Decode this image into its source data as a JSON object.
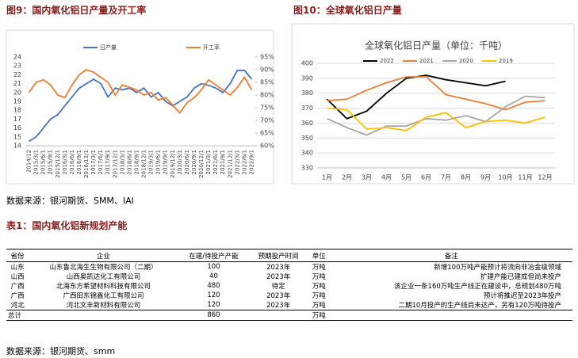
{
  "chart_data": [
    {
      "type": "line",
      "legend": "top",
      "categories": [
        "2014/12",
        "2015/3/1",
        "2015/6/1",
        "2015/9/1",
        "2015/12/1",
        "2016/3/1",
        "2016/6/1",
        "2016/9/1",
        "2016/12/1",
        "2017/3/1",
        "2017/6/1",
        "2017/9/1",
        "2017/12/1",
        "2018/3/1",
        "2018/6/1",
        "2018/9/1",
        "2018/12/1",
        "2019/3/1",
        "2019/6/1",
        "2019/9/1",
        "2019/12/1",
        "2020/3/1",
        "2020/6/1",
        "2020/9/1",
        "2020/12/1",
        "2021/3/1",
        "2021/6/1",
        "2021/9/1",
        "2021/12/1",
        "2022/3/1",
        "2022/6/1",
        "2022/9/1"
      ],
      "series": [
        {
          "name": "日产量",
          "color": "#4472c4",
          "values": [
            14.5,
            15,
            16,
            17,
            17.5,
            18.5,
            19.5,
            20.5,
            21,
            21.5,
            21,
            19.5,
            20.5,
            20.3,
            20.5,
            20,
            20.5,
            19.5,
            20,
            19,
            18.5,
            19,
            19.5,
            20.5,
            21,
            20.8,
            20.5,
            20,
            21,
            22.5,
            22.5,
            21.5
          ]
        },
        {
          "name": "开工率",
          "color": "#ed7d31",
          "axis": "y2",
          "values": [
            81,
            85,
            86,
            84,
            80,
            79,
            84,
            88,
            90,
            89,
            87,
            85,
            80,
            84,
            83,
            82,
            80,
            81,
            78,
            79,
            76,
            73,
            77,
            79,
            82,
            86,
            84,
            82,
            80,
            83,
            87,
            82
          ]
        }
      ],
      "ylim": [
        14,
        24
      ],
      "yticks": [
        14,
        15,
        16,
        17,
        18,
        19,
        20,
        21,
        22,
        23,
        24
      ],
      "y2lim": [
        60,
        95
      ],
      "y2ticks": [
        {
          "value": 60,
          "label": "60%"
        },
        {
          "value": 65,
          "label": "65%"
        },
        {
          "value": 70,
          "label": "70%"
        },
        {
          "value": 75,
          "label": "75%"
        },
        {
          "value": 80,
          "label": "80%"
        },
        {
          "value": 85,
          "label": "85%"
        },
        {
          "value": 90,
          "label": "90%"
        },
        {
          "value": 95,
          "label": "95%"
        }
      ],
      "grid": false
    },
    {
      "type": "line",
      "title": "全球氧化铝日产量（单位：千吨）",
      "legend": "top",
      "categories": [
        "1月",
        "2月",
        "3月",
        "4月",
        "5月",
        "6月",
        "7月",
        "8月",
        "9月",
        "10月",
        "11月",
        "12月"
      ],
      "series": [
        {
          "name": "2022",
          "color": "#000000",
          "values": [
            376,
            363,
            368,
            380,
            390,
            392,
            389,
            387,
            385,
            388,
            null,
            null
          ]
        },
        {
          "name": "2021",
          "color": "#ed7d31",
          "values": [
            375,
            376,
            382,
            387,
            391,
            391,
            379,
            376,
            373,
            369,
            374,
            375
          ]
        },
        {
          "name": "2020",
          "color": "#a5a5a5",
          "values": [
            363,
            357,
            352,
            358,
            358,
            363,
            362,
            365,
            361,
            371,
            378,
            377
          ]
        },
        {
          "name": "2019",
          "color": "#ffc000",
          "values": [
            370,
            369,
            356,
            357,
            355,
            364,
            367,
            357,
            361,
            362,
            360,
            364
          ]
        }
      ],
      "ylim": [
        330,
        400
      ],
      "yticks": [
        330,
        340,
        350,
        360,
        370,
        380,
        390,
        400
      ],
      "grid": true
    }
  ],
  "document": {
    "figure_captions": [
      "图9：国内氧化铝日产量及开工率",
      "图10：全球氧化铝日产量"
    ],
    "source_1": "数据来源：银河期货、SMM、IAI",
    "table_title": "表1：国内氧化铝新规划产能",
    "table": {
      "header": [
        "省份",
        "企业",
        "在建/待投产产能",
        "预期投产时间",
        "单位",
        "备注"
      ],
      "rows": [
        [
          "山东",
          "山东鲁北海生生物有限公司（二期）",
          100,
          "2023年",
          "万吨",
          "新增100万吨产能预计将流向非冶金级领域"
        ],
        [
          "山西",
          "山西奥凯达化工有限公司",
          40,
          "2023年",
          "万吨",
          "扩建产能已建成但尚未投产"
        ],
        [
          "广西",
          "北海东方希望材料科技有限公司",
          480,
          "待定",
          "万吨",
          "该企业一条160万吨生产线正在建设中，总规划480万吨"
        ],
        [
          "广西",
          "广西田东锦鑫化工有限公司",
          120,
          "2023年",
          "万吨",
          "预计将推迟至2023年投产"
        ],
        [
          "河北",
          "河北文丰新材料有限公司",
          120,
          "2023年",
          "万吨",
          "二期10月投产的生产线尚未达产，另有120万吨待投产"
        ]
      ],
      "total": {
        "label": "总计",
        "capacity": 860,
        "unit": "万吨"
      }
    },
    "source_2": "数据来源：银河期货、smm"
  }
}
